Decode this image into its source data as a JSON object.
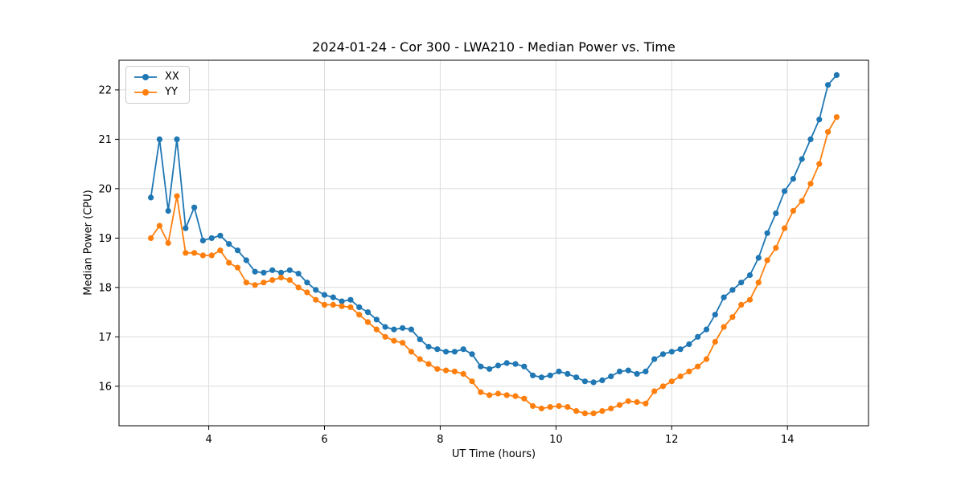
{
  "chart_data": {
    "type": "line",
    "title": "2024-01-24 - Cor 300 - LWA210 - Median Power vs. Time",
    "xlabel": "UT Time (hours)",
    "ylabel": "Median Power (CPU)",
    "xlim": [
      2.45,
      15.4
    ],
    "ylim": [
      15.2,
      22.6
    ],
    "x_ticks": [
      4,
      6,
      8,
      10,
      12,
      14
    ],
    "y_ticks": [
      16,
      17,
      18,
      19,
      20,
      21,
      22
    ],
    "grid": true,
    "legend_position": "upper left",
    "marker": "circle",
    "x": [
      3.0,
      3.15,
      3.3,
      3.45,
      3.6,
      3.75,
      3.9,
      4.05,
      4.2,
      4.35,
      4.5,
      4.65,
      4.8,
      4.95,
      5.1,
      5.25,
      5.4,
      5.55,
      5.7,
      5.85,
      6.0,
      6.15,
      6.3,
      6.45,
      6.6,
      6.75,
      6.9,
      7.05,
      7.2,
      7.35,
      7.5,
      7.65,
      7.8,
      7.95,
      8.1,
      8.25,
      8.4,
      8.55,
      8.7,
      8.85,
      9.0,
      9.15,
      9.3,
      9.45,
      9.6,
      9.75,
      9.9,
      10.05,
      10.2,
      10.35,
      10.5,
      10.65,
      10.8,
      10.95,
      11.1,
      11.25,
      11.4,
      11.55,
      11.7,
      11.85,
      12.0,
      12.15,
      12.3,
      12.45,
      12.6,
      12.75,
      12.9,
      13.05,
      13.2,
      13.35,
      13.5,
      13.65,
      13.8,
      13.95,
      14.1,
      14.25,
      14.4,
      14.55,
      14.7,
      14.85
    ],
    "series": [
      {
        "name": "XX",
        "color": "#1f77b4",
        "values": [
          19.82,
          21.0,
          19.55,
          21.0,
          19.2,
          19.62,
          18.95,
          19.0,
          19.05,
          18.88,
          18.75,
          18.55,
          18.32,
          18.3,
          18.35,
          18.3,
          18.35,
          18.28,
          18.1,
          17.95,
          17.85,
          17.8,
          17.72,
          17.75,
          17.6,
          17.5,
          17.35,
          17.2,
          17.15,
          17.18,
          17.15,
          16.95,
          16.8,
          16.75,
          16.7,
          16.7,
          16.75,
          16.65,
          16.4,
          16.35,
          16.42,
          16.47,
          16.45,
          16.4,
          16.22,
          16.18,
          16.22,
          16.3,
          16.25,
          16.18,
          16.1,
          16.08,
          16.12,
          16.2,
          16.3,
          16.32,
          16.25,
          16.3,
          16.55,
          16.65,
          16.7,
          16.75,
          16.85,
          17.0,
          17.15,
          17.45,
          17.8,
          17.95,
          18.1,
          18.25,
          18.6,
          19.1,
          19.5,
          19.95,
          20.2,
          20.6,
          21.0,
          21.4,
          22.1,
          22.3
        ]
      },
      {
        "name": "YY",
        "color": "#ff7f0e",
        "values": [
          19.0,
          19.25,
          18.9,
          19.85,
          18.7,
          18.7,
          18.65,
          18.65,
          18.75,
          18.5,
          18.4,
          18.1,
          18.05,
          18.1,
          18.15,
          18.2,
          18.15,
          18.0,
          17.9,
          17.75,
          17.65,
          17.65,
          17.62,
          17.6,
          17.45,
          17.3,
          17.15,
          17.0,
          16.92,
          16.88,
          16.7,
          16.55,
          16.45,
          16.35,
          16.32,
          16.3,
          16.25,
          16.1,
          15.88,
          15.82,
          15.85,
          15.82,
          15.8,
          15.75,
          15.6,
          15.55,
          15.58,
          15.6,
          15.58,
          15.5,
          15.45,
          15.45,
          15.5,
          15.55,
          15.62,
          15.7,
          15.68,
          15.65,
          15.9,
          16.0,
          16.1,
          16.2,
          16.3,
          16.4,
          16.55,
          16.9,
          17.2,
          17.4,
          17.65,
          17.75,
          18.1,
          18.55,
          18.8,
          19.2,
          19.55,
          19.75,
          20.1,
          20.5,
          21.15,
          21.45
        ]
      }
    ]
  }
}
